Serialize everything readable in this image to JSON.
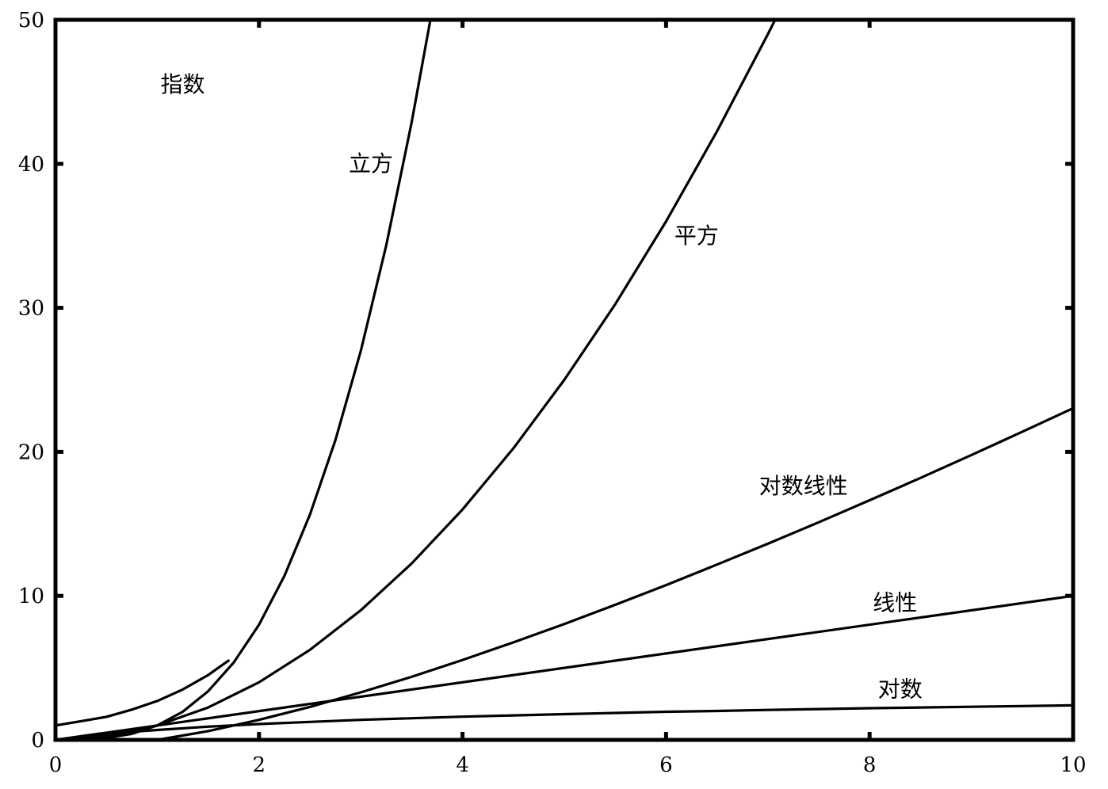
{
  "chart_data": {
    "type": "line",
    "title": "",
    "xlabel": "",
    "ylabel": "",
    "xlim": [
      0,
      10
    ],
    "ylim": [
      0,
      50
    ],
    "xticks": [
      0,
      2,
      4,
      6,
      8,
      10
    ],
    "yticks": [
      0,
      10,
      20,
      30,
      40,
      50
    ],
    "grid": false,
    "x": [
      0,
      0.25,
      0.5,
      0.75,
      1,
      1.25,
      1.5,
      1.75,
      2,
      2.5,
      3,
      3.5,
      4,
      4.5,
      5,
      5.5,
      6,
      6.5,
      7,
      7.5,
      8,
      8.5,
      9,
      9.5,
      10
    ],
    "series": [
      {
        "name": "指数",
        "x": [
          0,
          0.25,
          0.5,
          0.75,
          1,
          1.25,
          1.5,
          1.6,
          1.7
        ],
        "y": [
          1,
          1.3,
          1.6,
          2.1,
          2.7,
          3.5,
          4.5,
          5.0,
          5.5
        ]
      },
      {
        "name": "立方",
        "x": [
          0,
          0.25,
          0.5,
          0.75,
          1,
          1.25,
          1.5,
          1.75,
          2,
          2.25,
          2.5,
          2.75,
          3,
          3.25,
          3.5,
          3.68
        ],
        "y": [
          0,
          0.02,
          0.13,
          0.42,
          1,
          1.95,
          3.38,
          5.36,
          8,
          11.39,
          15.63,
          20.8,
          27,
          34.33,
          42.88,
          49.84
        ]
      },
      {
        "name": "平方",
        "x": [
          0,
          0.5,
          1,
          1.5,
          2,
          2.5,
          3,
          3.5,
          4,
          4.5,
          5,
          5.5,
          6,
          6.5,
          7,
          7.07
        ],
        "y": [
          0,
          0.25,
          1,
          2.25,
          4,
          6.25,
          9,
          12.25,
          16,
          20.25,
          25,
          30.25,
          36,
          42.25,
          49,
          49.98
        ]
      },
      {
        "name": "对数线性",
        "x": [
          0,
          0.25,
          0.5,
          0.75,
          1,
          1.5,
          2,
          2.5,
          3,
          3.5,
          4,
          4.5,
          5,
          5.5,
          6,
          6.5,
          7,
          7.5,
          8,
          8.5,
          9,
          9.5,
          10
        ],
        "y": [
          0,
          0.0,
          0.0,
          0.0,
          0.0,
          0.61,
          1.39,
          2.29,
          3.3,
          4.38,
          5.55,
          6.77,
          8.05,
          9.38,
          10.75,
          12.17,
          13.62,
          15.11,
          16.64,
          18.19,
          19.78,
          21.39,
          23.03
        ]
      },
      {
        "name": "线性",
        "x": [
          0,
          10
        ],
        "y": [
          0,
          10
        ]
      },
      {
        "name": "对数",
        "x": [
          0,
          0.25,
          0.5,
          0.75,
          1,
          1.5,
          2,
          2.5,
          3,
          3.5,
          4,
          4.5,
          5,
          5.5,
          6,
          6.5,
          7,
          7.5,
          8,
          8.5,
          9,
          9.5,
          10
        ],
        "y": [
          0,
          0.22,
          0.41,
          0.56,
          0.69,
          0.92,
          1.1,
          1.25,
          1.39,
          1.5,
          1.61,
          1.7,
          1.79,
          1.87,
          1.95,
          2.01,
          2.08,
          2.14,
          2.2,
          2.25,
          2.3,
          2.35,
          2.4
        ]
      }
    ],
    "labels": [
      {
        "text": "指数",
        "x": 1.25,
        "y": 45.0
      },
      {
        "text": "立方",
        "x": 3.1,
        "y": 39.5
      },
      {
        "text": "平方",
        "x": 6.3,
        "y": 34.5
      },
      {
        "text": "对数线性",
        "x": 7.35,
        "y": 17.1
      },
      {
        "text": "线性",
        "x": 8.25,
        "y": 9.0
      },
      {
        "text": "对数",
        "x": 8.3,
        "y": 3.0
      }
    ]
  }
}
